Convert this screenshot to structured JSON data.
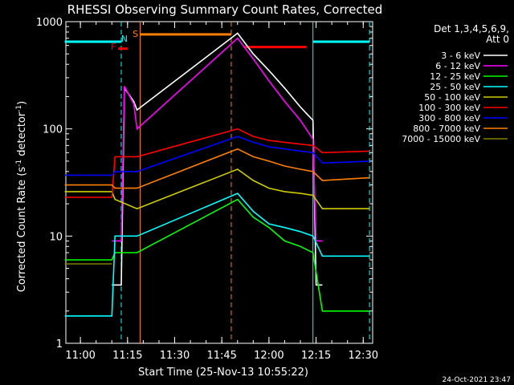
{
  "chart_data": {
    "type": "line",
    "title": "RHESSI Observing Summary Count Rates, Corrected",
    "xlabel": "Start Time (25-Nov-13 10:55:22)",
    "ylabel": "Corrected Count Rate (s⁻¹ detector⁻¹)",
    "ylabel_base": "Corrected Count Rate (s",
    "ylabel_mid": " detector",
    "ylabel_end": ")",
    "ylabel_sup": "-1",
    "yscale": "log",
    "ylim": [
      1,
      1000
    ],
    "xlim": [
      "10:55:22",
      "12:33:00"
    ],
    "x_tick_labels": [
      "11:00",
      "11:15",
      "11:30",
      "11:45",
      "12:00",
      "12:15",
      "12:30"
    ],
    "y_tick_labels": [
      "1",
      "10",
      "100",
      "1000"
    ],
    "legend_title": "Det 1,3,4,5,6,9,",
    "legend_subtitle": "Att 0",
    "legend_position": "right",
    "flag_labels": {
      "F": "F",
      "N": "N",
      "S": "S"
    },
    "footer_date": "24-Oct-2021 23:47",
    "series": [
      {
        "name": "3 - 6 keV",
        "color": "#ffffff",
        "points": [
          [
            "11:10",
            3.5
          ],
          [
            "11:13",
            3.5
          ],
          [
            "11:14",
            240
          ],
          [
            "11:17",
            180
          ],
          [
            "11:18",
            150
          ],
          [
            "11:50",
            780
          ],
          [
            "11:55",
            500
          ],
          [
            "12:00",
            350
          ],
          [
            "12:05",
            240
          ],
          [
            "12:10",
            160
          ],
          [
            "12:14",
            120
          ],
          [
            "12:15",
            3.5
          ],
          [
            "12:17",
            3.5
          ]
        ]
      },
      {
        "name": "6 - 12 keV",
        "color": "#ff00ff",
        "points": [
          [
            "11:10",
            9
          ],
          [
            "11:13",
            9
          ],
          [
            "11:14",
            250
          ],
          [
            "11:17",
            170
          ],
          [
            "11:18",
            100
          ],
          [
            "11:50",
            700
          ],
          [
            "11:55",
            450
          ],
          [
            "12:00",
            280
          ],
          [
            "12:05",
            180
          ],
          [
            "12:10",
            120
          ],
          [
            "12:14",
            80
          ],
          [
            "12:15",
            9
          ],
          [
            "12:17",
            9
          ]
        ]
      },
      {
        "name": "12 - 25 keV",
        "color": "#00ff00",
        "points": [
          [
            "10:55",
            6
          ],
          [
            "11:10",
            6
          ],
          [
            "11:11",
            7
          ],
          [
            "11:18",
            7
          ],
          [
            "11:50",
            22
          ],
          [
            "11:55",
            15
          ],
          [
            "12:00",
            12
          ],
          [
            "12:05",
            9
          ],
          [
            "12:10",
            8
          ],
          [
            "12:14",
            7
          ],
          [
            "12:17",
            2
          ],
          [
            "12:32",
            2
          ]
        ]
      },
      {
        "name": "25 - 50 keV",
        "color": "#00ffff",
        "points": [
          [
            "10:55",
            1.8
          ],
          [
            "11:10",
            1.8
          ],
          [
            "11:11",
            10
          ],
          [
            "11:18",
            10
          ],
          [
            "11:50",
            25
          ],
          [
            "11:55",
            17
          ],
          [
            "12:00",
            13
          ],
          [
            "12:05",
            12
          ],
          [
            "12:10",
            11
          ],
          [
            "12:14",
            10
          ],
          [
            "12:17",
            6.5
          ],
          [
            "12:32",
            6.5
          ]
        ]
      },
      {
        "name": "50 - 100 keV",
        "color": "#cccc00",
        "points": [
          [
            "10:55",
            26
          ],
          [
            "11:10",
            26
          ],
          [
            "11:11",
            22
          ],
          [
            "11:18",
            18
          ],
          [
            "11:50",
            42
          ],
          [
            "11:55",
            33
          ],
          [
            "12:00",
            28
          ],
          [
            "12:05",
            26
          ],
          [
            "12:10",
            25
          ],
          [
            "12:14",
            24
          ],
          [
            "12:17",
            18
          ],
          [
            "12:32",
            18
          ]
        ]
      },
      {
        "name": "100 - 300 keV",
        "color": "#ff0000",
        "points": [
          [
            "10:55",
            23
          ],
          [
            "11:10",
            23
          ],
          [
            "11:11",
            55
          ],
          [
            "11:18",
            55
          ],
          [
            "11:50",
            100
          ],
          [
            "11:55",
            85
          ],
          [
            "12:00",
            78
          ],
          [
            "12:05",
            75
          ],
          [
            "12:10",
            72
          ],
          [
            "12:14",
            70
          ],
          [
            "12:17",
            60
          ],
          [
            "12:32",
            62
          ]
        ]
      },
      {
        "name": "300 - 800 keV",
        "color": "#0000ff",
        "points": [
          [
            "10:55",
            37
          ],
          [
            "11:10",
            37
          ],
          [
            "11:11",
            40
          ],
          [
            "11:18",
            40
          ],
          [
            "11:50",
            85
          ],
          [
            "11:55",
            75
          ],
          [
            "12:00",
            68
          ],
          [
            "12:05",
            65
          ],
          [
            "12:10",
            62
          ],
          [
            "12:14",
            60
          ],
          [
            "12:17",
            48
          ],
          [
            "12:32",
            50
          ]
        ]
      },
      {
        "name": "800 - 7000 keV",
        "color": "#ff8000",
        "points": [
          [
            "10:55",
            30
          ],
          [
            "11:10",
            30
          ],
          [
            "11:11",
            28
          ],
          [
            "11:18",
            28
          ],
          [
            "11:50",
            65
          ],
          [
            "11:55",
            55
          ],
          [
            "12:00",
            50
          ],
          [
            "12:05",
            45
          ],
          [
            "12:10",
            42
          ],
          [
            "12:14",
            40
          ],
          [
            "12:17",
            33
          ],
          [
            "12:32",
            35
          ]
        ]
      },
      {
        "name": "7000 - 15000 keV",
        "color": "#808000",
        "points": [
          [
            "10:55",
            5.5
          ],
          [
            "11:10",
            5.5
          ]
        ]
      }
    ],
    "flags": [
      {
        "label": "F",
        "color": "#ff0000",
        "start": "11:12",
        "end": "11:15",
        "level": 560
      },
      {
        "label": "S",
        "color": "#ff8000",
        "start": "11:19",
        "end": "11:48",
        "level": 760
      },
      {
        "label": "",
        "color": "#ff0000",
        "start": "11:52",
        "end": "12:12",
        "level": 580
      },
      {
        "label": "N",
        "color": "#00ffff",
        "start": "10:55",
        "end": "11:13",
        "level": 650
      },
      {
        "label": "",
        "color": "#00ffff",
        "start": "12:14",
        "end": "12:32",
        "level": 650
      }
    ],
    "vertical_lines": [
      {
        "time": "11:13",
        "color": "#00ffff",
        "style": "dashed"
      },
      {
        "time": "11:19",
        "color": "#ff8000",
        "style": "solid"
      },
      {
        "time": "11:48",
        "color": "#ff8000",
        "style": "dashed"
      },
      {
        "time": "12:14",
        "color": "#00ffff",
        "style": "solid"
      },
      {
        "time": "12:32",
        "color": "#00ffff",
        "style": "dashed"
      }
    ]
  }
}
